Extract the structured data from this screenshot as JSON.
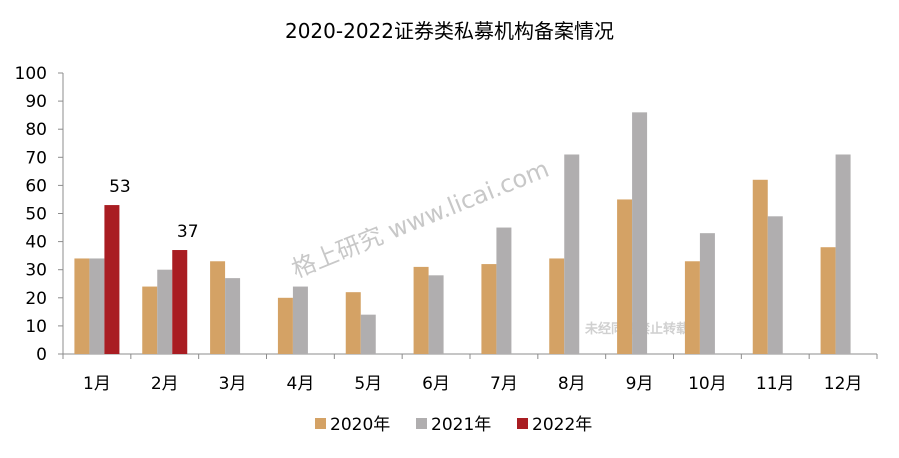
{
  "chart_data": {
    "type": "bar",
    "title": "2020-2022证券类私募机构备案情况",
    "categories": [
      "1月",
      "2月",
      "3月",
      "4月",
      "5月",
      "6月",
      "7月",
      "8月",
      "9月",
      "10月",
      "11月",
      "12月"
    ],
    "series": [
      {
        "name": "2020年",
        "color": "#D4A265",
        "values": [
          34,
          24,
          33,
          20,
          22,
          31,
          32,
          34,
          55,
          33,
          62,
          38
        ]
      },
      {
        "name": "2021年",
        "color": "#B0AEAF",
        "values": [
          34,
          30,
          27,
          24,
          14,
          28,
          45,
          71,
          86,
          43,
          49,
          71
        ]
      },
      {
        "name": "2022年",
        "color": "#A91D22",
        "values": [
          53,
          37,
          null,
          null,
          null,
          null,
          null,
          null,
          null,
          null,
          null,
          null
        ]
      }
    ],
    "data_labels": [
      {
        "series": 2,
        "index": 0,
        "text": "53"
      },
      {
        "series": 2,
        "index": 1,
        "text": "37"
      }
    ],
    "yticks": [
      "0",
      "10",
      "20",
      "30",
      "40",
      "50",
      "60",
      "70",
      "80",
      "90",
      "100"
    ],
    "ylim": [
      0,
      100
    ],
    "grid": false,
    "legend_position": "bottom",
    "watermarks": [
      "格上研究  www.licai.com",
      "未经同意禁止转载"
    ]
  }
}
